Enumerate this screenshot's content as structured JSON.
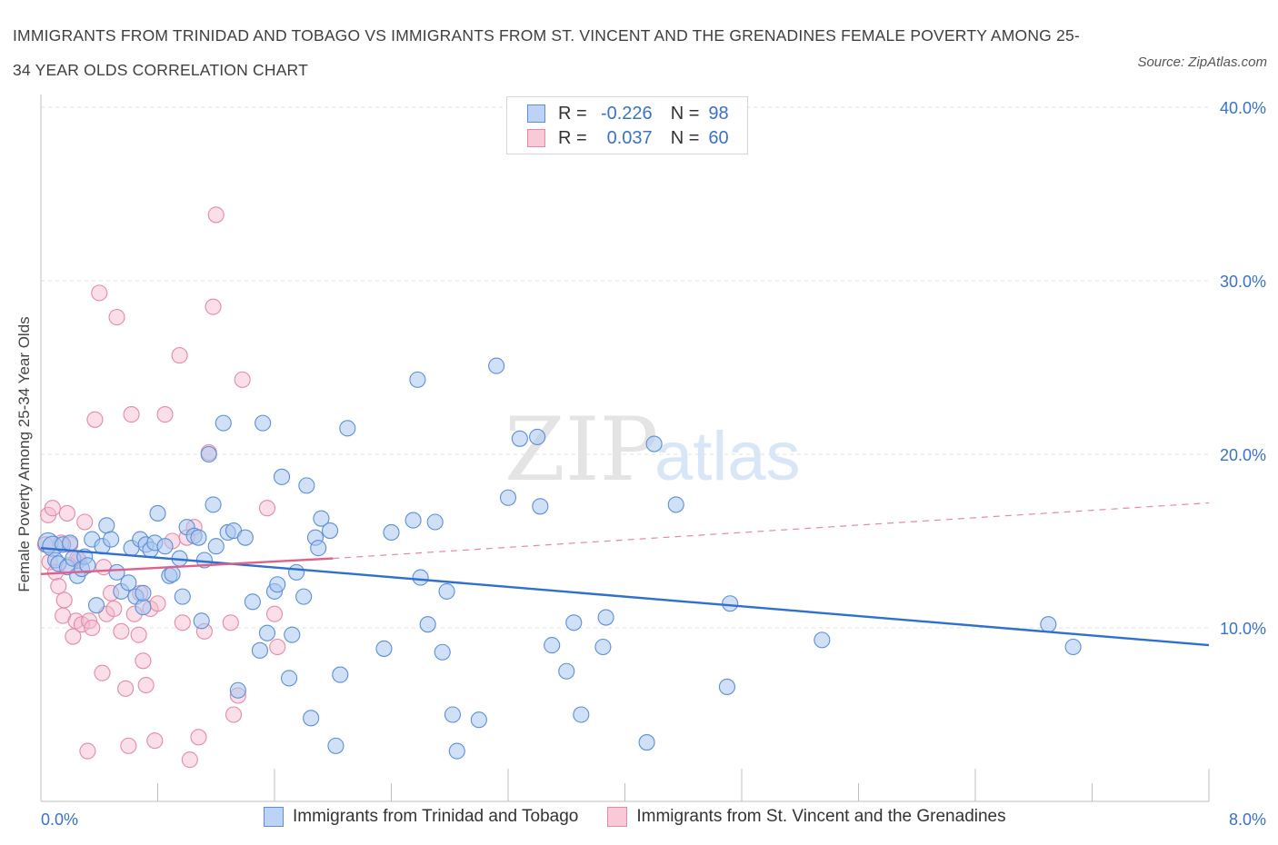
{
  "header": {
    "title": "IMMIGRANTS FROM TRINIDAD AND TOBAGO VS IMMIGRANTS FROM ST. VINCENT AND THE GRENADINES FEMALE POVERTY AMONG 25-34 YEAR OLDS CORRELATION CHART",
    "source": "Source: ZipAtlas.com"
  },
  "legend": {
    "r_label": "R =",
    "n_label": "N =",
    "rows": [
      {
        "r": "-0.226",
        "n": "98"
      },
      {
        "r": "0.037",
        "n": "60"
      }
    ]
  },
  "bottom_legend": {
    "items": [
      "Immigrants from Trinidad and Tobago",
      "Immigrants from St. Vincent and the Grenadines"
    ]
  },
  "colors": {
    "blue_fill": "#a9c6f0",
    "blue_stroke": "#5b8fd8",
    "blue_line": "#2f6fd0",
    "pink_fill": "#f5b8cb",
    "pink_stroke": "#e58aa6",
    "pink_line": "#e0608a",
    "axis_text": "#3a72c9",
    "grid": "#e2e2e2"
  },
  "chart_data": {
    "type": "scatter",
    "title": "IMMIGRANTS FROM TRINIDAD AND TOBAGO VS IMMIGRANTS FROM ST. VINCENT AND THE GRENADINES FEMALE POVERTY AMONG 25-34 YEAR OLDS CORRELATION CHART",
    "xlabel": "",
    "ylabel": "Female Poverty Among 25-34 Year Olds",
    "xlim": [
      0,
      8
    ],
    "ylim": [
      0,
      40
    ],
    "x_tick_labels": [
      "0.0%",
      "8.0%"
    ],
    "y_tick_labels": [
      "10.0%",
      "20.0%",
      "30.0%",
      "40.0%"
    ],
    "y_ticks": [
      10,
      20,
      30,
      40
    ],
    "grid": true,
    "watermark": "ZIPatlas",
    "series": [
      {
        "name": "Immigrants from Trinidad and Tobago",
        "color": "blue",
        "trend": {
          "x0": 0,
          "y0": 14.6,
          "x1": 8,
          "y1": 9.0,
          "dashed_from": null
        },
        "points": [
          [
            0.05,
            14.9
          ],
          [
            0.08,
            14.7
          ],
          [
            0.1,
            13.9
          ],
          [
            0.12,
            13.7
          ],
          [
            0.15,
            14.8
          ],
          [
            0.18,
            13.5
          ],
          [
            0.2,
            14.9
          ],
          [
            0.22,
            14.0
          ],
          [
            0.25,
            13.0
          ],
          [
            0.28,
            13.4
          ],
          [
            0.3,
            14.1
          ],
          [
            0.35,
            15.1
          ],
          [
            0.38,
            11.3
          ],
          [
            0.42,
            14.7
          ],
          [
            0.45,
            15.9
          ],
          [
            0.48,
            15.1
          ],
          [
            0.52,
            13.2
          ],
          [
            0.55,
            12.1
          ],
          [
            0.6,
            12.6
          ],
          [
            0.62,
            14.6
          ],
          [
            0.65,
            11.8
          ],
          [
            0.68,
            15.1
          ],
          [
            0.7,
            11.2
          ],
          [
            0.72,
            14.8
          ],
          [
            0.75,
            14.5
          ],
          [
            0.78,
            14.9
          ],
          [
            0.8,
            16.6
          ],
          [
            0.85,
            14.7
          ],
          [
            0.88,
            13.0
          ],
          [
            0.9,
            13.1
          ],
          [
            0.95,
            14.0
          ],
          [
            0.97,
            11.8
          ],
          [
            1.0,
            15.8
          ],
          [
            1.05,
            15.3
          ],
          [
            1.08,
            15.2
          ],
          [
            1.1,
            10.4
          ],
          [
            1.12,
            13.9
          ],
          [
            1.15,
            20.0
          ],
          [
            1.18,
            17.1
          ],
          [
            1.2,
            14.7
          ],
          [
            1.25,
            21.8
          ],
          [
            1.28,
            15.5
          ],
          [
            1.32,
            15.6
          ],
          [
            1.35,
            6.4
          ],
          [
            1.4,
            15.2
          ],
          [
            1.45,
            11.5
          ],
          [
            1.5,
            8.7
          ],
          [
            1.52,
            21.8
          ],
          [
            1.55,
            9.7
          ],
          [
            1.6,
            12.1
          ],
          [
            1.62,
            12.5
          ],
          [
            1.65,
            18.7
          ],
          [
            1.7,
            7.1
          ],
          [
            1.72,
            9.6
          ],
          [
            1.75,
            13.2
          ],
          [
            1.8,
            11.8
          ],
          [
            1.82,
            18.2
          ],
          [
            1.85,
            4.8
          ],
          [
            1.88,
            15.2
          ],
          [
            1.9,
            14.6
          ],
          [
            1.92,
            16.3
          ],
          [
            1.98,
            15.6
          ],
          [
            2.02,
            3.2
          ],
          [
            2.05,
            7.3
          ],
          [
            2.1,
            21.5
          ],
          [
            2.35,
            8.8
          ],
          [
            2.4,
            15.5
          ],
          [
            2.55,
            16.2
          ],
          [
            2.58,
            24.3
          ],
          [
            2.6,
            12.9
          ],
          [
            2.65,
            10.2
          ],
          [
            2.7,
            16.1
          ],
          [
            2.75,
            8.6
          ],
          [
            2.78,
            12.1
          ],
          [
            2.82,
            5.0
          ],
          [
            2.85,
            2.9
          ],
          [
            3.0,
            4.7
          ],
          [
            3.12,
            25.1
          ],
          [
            3.2,
            17.5
          ],
          [
            3.28,
            20.9
          ],
          [
            3.4,
            21.0
          ],
          [
            3.42,
            17.0
          ],
          [
            3.5,
            9.0
          ],
          [
            3.6,
            7.5
          ],
          [
            3.65,
            10.3
          ],
          [
            3.7,
            5.0
          ],
          [
            3.85,
            8.9
          ],
          [
            3.87,
            10.6
          ],
          [
            4.15,
            3.4
          ],
          [
            4.2,
            20.6
          ],
          [
            4.35,
            17.1
          ],
          [
            4.7,
            6.6
          ],
          [
            4.72,
            11.4
          ],
          [
            5.35,
            9.3
          ],
          [
            6.9,
            10.2
          ],
          [
            7.07,
            8.9
          ],
          [
            0.7,
            12.0
          ],
          [
            0.32,
            13.6
          ]
        ]
      },
      {
        "name": "Immigrants from St. Vincent and the Grenadines",
        "color": "pink",
        "trend": {
          "x0": 0,
          "y0": 13.1,
          "x1": 2.0,
          "y1": 14.0,
          "dashed_to_x": 8,
          "dashed_to_y": 17.2
        },
        "points": [
          [
            0.03,
            14.8
          ],
          [
            0.05,
            16.5
          ],
          [
            0.06,
            13.8
          ],
          [
            0.08,
            16.9
          ],
          [
            0.1,
            13.2
          ],
          [
            0.12,
            12.4
          ],
          [
            0.15,
            10.7
          ],
          [
            0.16,
            11.6
          ],
          [
            0.18,
            16.6
          ],
          [
            0.2,
            14.8
          ],
          [
            0.22,
            9.5
          ],
          [
            0.24,
            10.4
          ],
          [
            0.26,
            13.9
          ],
          [
            0.28,
            10.2
          ],
          [
            0.3,
            16.1
          ],
          [
            0.32,
            2.9
          ],
          [
            0.33,
            10.4
          ],
          [
            0.35,
            10.0
          ],
          [
            0.37,
            22.0
          ],
          [
            0.4,
            29.3
          ],
          [
            0.42,
            7.4
          ],
          [
            0.45,
            10.8
          ],
          [
            0.48,
            12.0
          ],
          [
            0.5,
            11.1
          ],
          [
            0.52,
            27.9
          ],
          [
            0.55,
            9.8
          ],
          [
            0.58,
            6.5
          ],
          [
            0.6,
            3.2
          ],
          [
            0.62,
            22.3
          ],
          [
            0.64,
            10.8
          ],
          [
            0.67,
            9.6
          ],
          [
            0.68,
            12.0
          ],
          [
            0.7,
            8.1
          ],
          [
            0.72,
            6.7
          ],
          [
            0.75,
            11.1
          ],
          [
            0.78,
            3.5
          ],
          [
            0.8,
            11.4
          ],
          [
            0.85,
            22.3
          ],
          [
            0.9,
            15.0
          ],
          [
            0.95,
            25.7
          ],
          [
            0.97,
            10.3
          ],
          [
            1.0,
            15.2
          ],
          [
            1.02,
            2.4
          ],
          [
            1.05,
            15.8
          ],
          [
            1.08,
            3.7
          ],
          [
            1.12,
            9.8
          ],
          [
            1.15,
            20.1
          ],
          [
            1.18,
            28.5
          ],
          [
            1.2,
            33.8
          ],
          [
            1.3,
            10.3
          ],
          [
            1.32,
            5.0
          ],
          [
            1.35,
            6.1
          ],
          [
            1.38,
            24.3
          ],
          [
            1.55,
            16.9
          ],
          [
            1.6,
            10.8
          ],
          [
            1.62,
            8.9
          ],
          [
            0.25,
            14.0
          ],
          [
            0.43,
            13.5
          ],
          [
            0.14,
            14.9
          ],
          [
            0.19,
            13.6
          ]
        ]
      }
    ]
  }
}
